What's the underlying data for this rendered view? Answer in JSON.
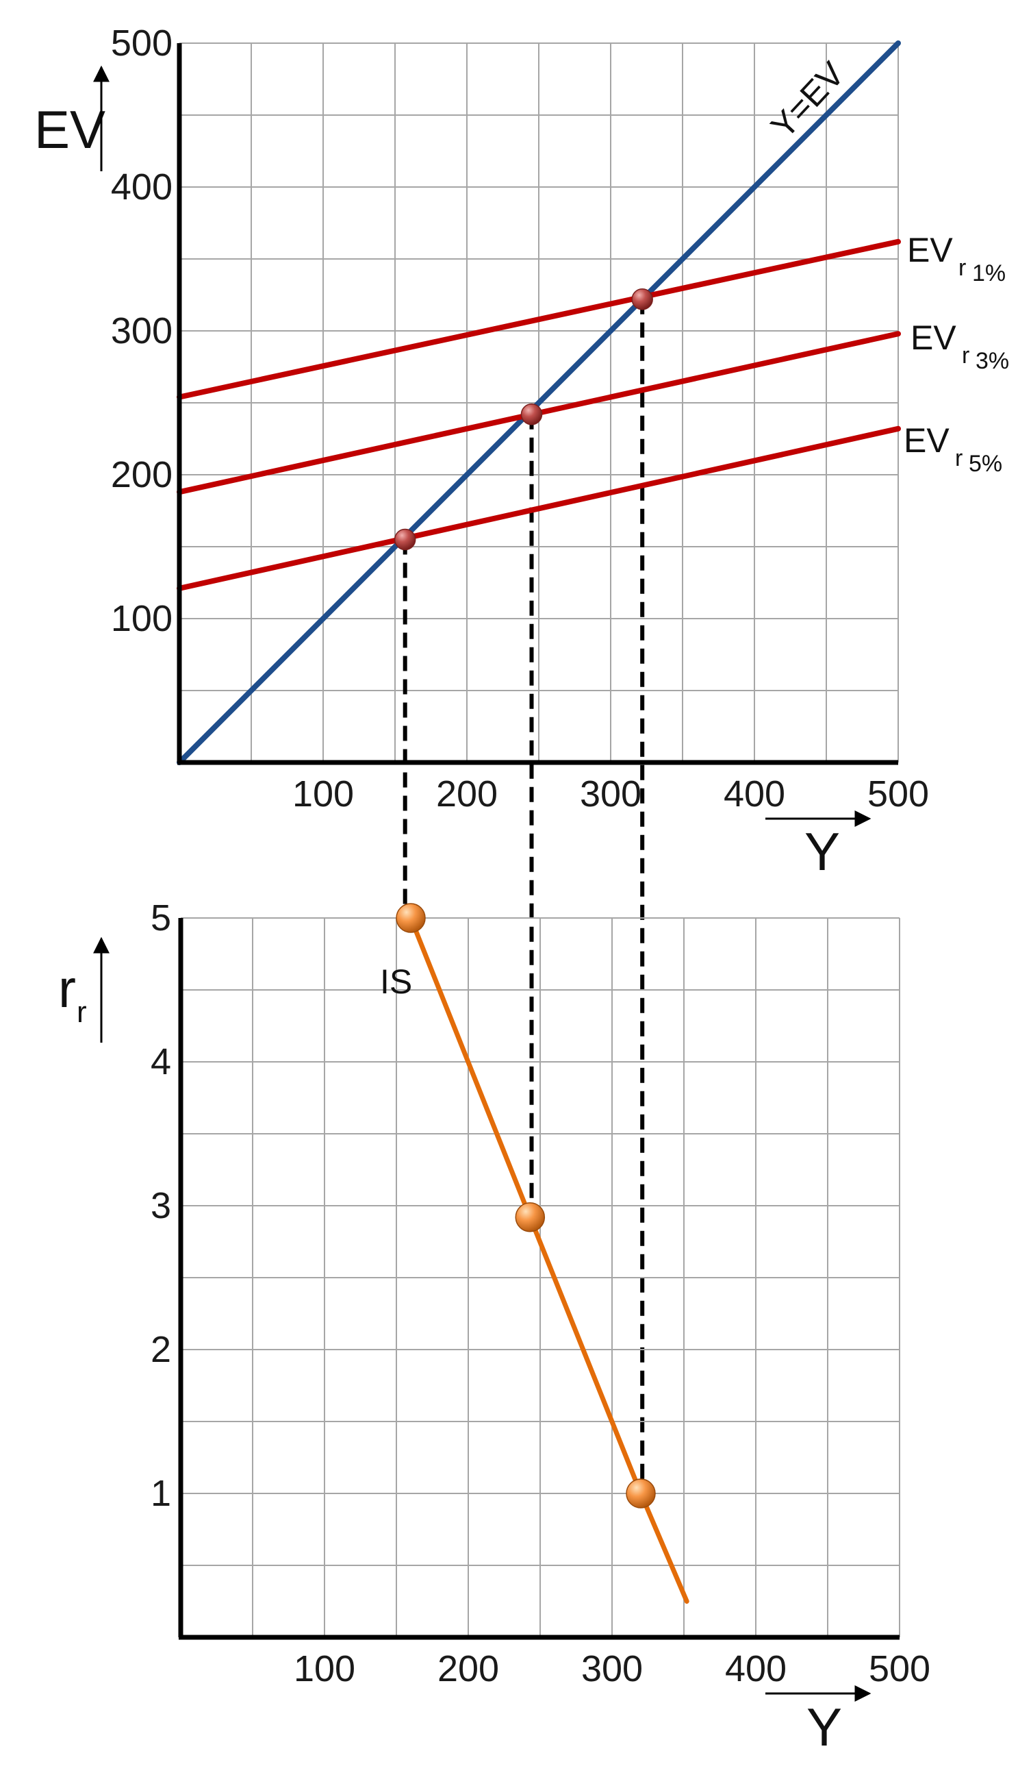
{
  "colors": {
    "grid": "#a6a6a6",
    "axis": "#000000",
    "blue": "#1f4e8c",
    "red": "#c00000",
    "orange": "#e36c09",
    "red_point": "#c0504d",
    "orange_point": "#f79646",
    "dash": "#000000"
  },
  "chart_data": [
    {
      "type": "line",
      "title": "",
      "ylabel": "EV",
      "xlabel": "Y",
      "xlim": [
        0,
        500
      ],
      "ylim": [
        0,
        500
      ],
      "grid": true,
      "x_ticks": [
        100,
        200,
        300,
        400,
        500
      ],
      "y_ticks": [
        100,
        200,
        300,
        400,
        500
      ],
      "series": [
        {
          "name": "Y=EV",
          "color_key": "blue",
          "points": [
            [
              0,
              0
            ],
            [
              500,
              500
            ]
          ]
        },
        {
          "name": "EV",
          "sub_prefix": "r",
          "sub": "1%",
          "color_key": "red",
          "points": [
            [
              0,
              254
            ],
            [
              500,
              362
            ]
          ]
        },
        {
          "name": "EV",
          "sub_prefix": "r",
          "sub": "3%",
          "color_key": "red",
          "points": [
            [
              0,
              188
            ],
            [
              500,
              298
            ]
          ]
        },
        {
          "name": "EV",
          "sub_prefix": "r",
          "sub": "5%",
          "color_key": "red",
          "points": [
            [
              0,
              121
            ],
            [
              500,
              232
            ]
          ]
        }
      ],
      "intersections": [
        [
          157,
          155
        ],
        [
          245,
          242
        ],
        [
          322,
          322
        ]
      ]
    },
    {
      "type": "line",
      "title": "",
      "ylabel": "r",
      "ylabel_sub": "r",
      "xlabel": "Y",
      "xlim": [
        0,
        500
      ],
      "ylim": [
        0,
        5
      ],
      "grid": true,
      "x_ticks": [
        100,
        200,
        300,
        400,
        500
      ],
      "y_ticks": [
        1,
        2,
        3,
        4,
        5
      ],
      "series": [
        {
          "name": "IS",
          "color_key": "orange",
          "points": [
            [
              160,
              5
            ],
            [
              243,
              2.92
            ],
            [
              320,
              1
            ],
            [
              352,
              0.25
            ]
          ]
        }
      ],
      "points": [
        [
          160,
          5
        ],
        [
          243,
          2.92
        ],
        [
          320,
          1
        ]
      ]
    }
  ]
}
